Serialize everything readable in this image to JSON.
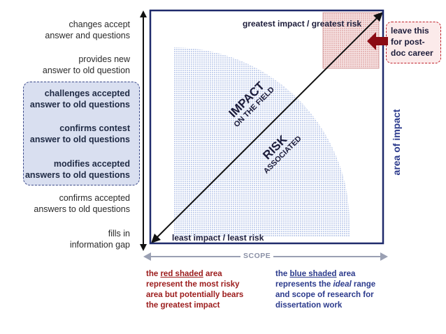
{
  "y_axis_labels": [
    {
      "text": "changes accept\nanswer and questions",
      "emphasis": false
    },
    {
      "text": "provides new\nanswer to old question",
      "emphasis": false
    },
    {
      "text": "challenges accepted\nanswer to old questions",
      "emphasis": true
    },
    {
      "text": "confirms contest\nanswer to old questions",
      "emphasis": true
    },
    {
      "text": "modifies accepted\nanswers to old questions",
      "emphasis": true
    },
    {
      "text": "confirms accepted\nanswers to old questions",
      "emphasis": false
    },
    {
      "text": "fills in\ninformation gap",
      "emphasis": false
    }
  ],
  "top_right_label": "greatest impact / greatest risk",
  "bottom_left_label": "least impact / least risk",
  "x_axis_label": "SCOPE",
  "right_axis_label": "area of impact",
  "callout": "leave this\nfor post-\ndoc career",
  "arrow_labels": {
    "impact_big": "IMPACT",
    "impact_small": "ON THE FIELD",
    "risk_big": "RISK",
    "risk_small": "ASSOCIATED"
  },
  "notes": {
    "red": {
      "pre": "the ",
      "highlight": "red shaded",
      "post": " area\nrepresent the most risky\narea but potentially bears\nthe greatest impact"
    },
    "blue": {
      "pre": "the ",
      "highlight": "blue shaded",
      "mid": " area\nrepresents the ",
      "italic": "ideal",
      "post": " range\nand scope of research for\ndissertation work"
    }
  },
  "colors": {
    "frame": "#1f2a6b",
    "red_zone": "#e6b8b8",
    "blue_zone": "#c9d4ee",
    "callout_border": "#c0202a",
    "callout_fill": "#fbeaea",
    "callout_arrow": "#8b0b14",
    "red_text": "#9b1b1b",
    "blue_text": "#2b3a8c"
  }
}
